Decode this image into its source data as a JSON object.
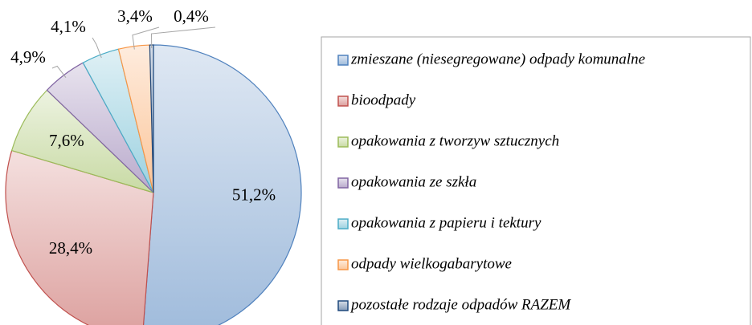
{
  "chart_data": {
    "type": "pie",
    "categories": [
      "zmieszane (niesegregowane) odpady komunalne",
      "bioodpady",
      "opakowania z tworzyw sztucznych",
      "opakowania ze szkła",
      "opakowania z papieru i tektury",
      "odpady wielkogabarytowe",
      "pozostałe rodzaje odpadów RAZEM"
    ],
    "values": [
      51.2,
      28.4,
      7.6,
      4.9,
      4.1,
      3.4,
      0.4
    ],
    "value_labels": [
      "51,2%",
      "28,4%",
      "7,6%",
      "4,9%",
      "4,1%",
      "3,4%",
      "0,4%"
    ],
    "colors": [
      "#4f81bd",
      "#c0504d",
      "#9bbb59",
      "#8064a2",
      "#4bacc6",
      "#f79646",
      "#1f497d"
    ],
    "legend": "right"
  }
}
